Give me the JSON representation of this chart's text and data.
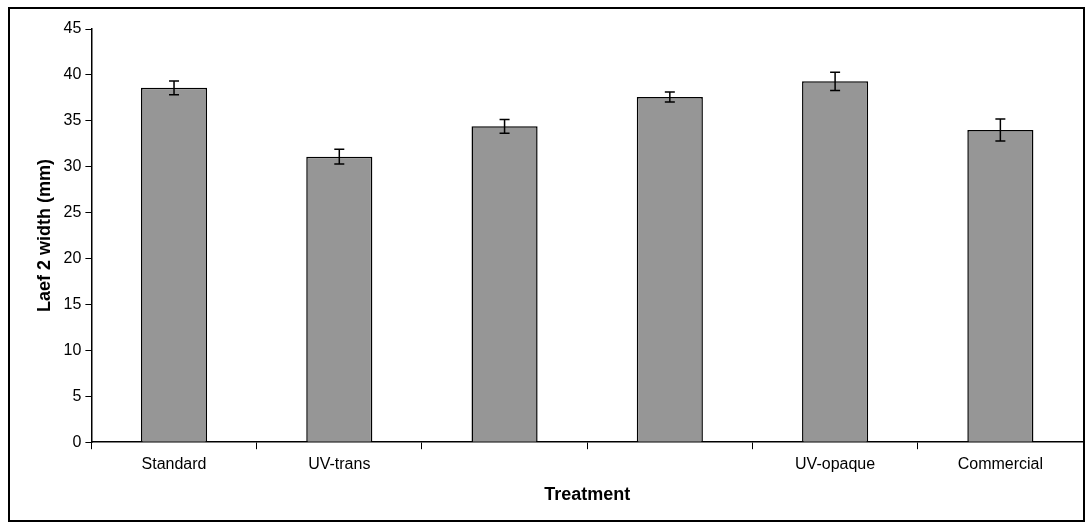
{
  "chart_data": {
    "type": "bar",
    "xlabel": "Treatment",
    "ylabel": "Laef 2 width (mm)",
    "categories": [
      "Standard",
      "UV-trans",
      null,
      null,
      "UV-opaque",
      "Commercial"
    ],
    "values": [
      38.6,
      31.1,
      34.4,
      37.6,
      39.3,
      34.0
    ],
    "errors": [
      0.75,
      0.8,
      0.75,
      0.55,
      1.0,
      1.2
    ],
    "color": "#969696",
    "ylim": [
      0,
      45
    ],
    "yticks": [
      0,
      5,
      10,
      15,
      20,
      25,
      30,
      35,
      40,
      45
    ]
  }
}
